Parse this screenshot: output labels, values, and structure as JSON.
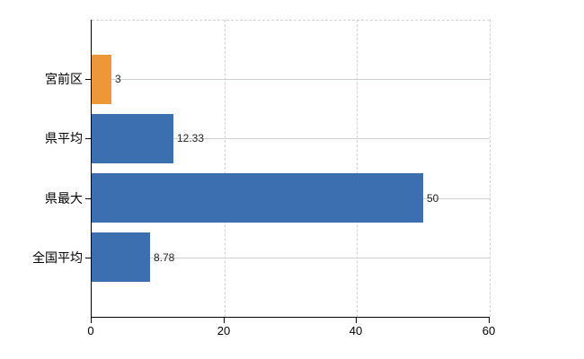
{
  "chart_data": {
    "type": "bar",
    "orientation": "horizontal",
    "title": "",
    "xlabel": "",
    "ylabel": "",
    "categories": [
      "宮前区",
      "県平均",
      "県最大",
      "全国平均"
    ],
    "values": [
      3,
      12.33,
      50,
      8.78
    ],
    "value_labels": [
      "3",
      "12.33",
      "50",
      "8.78"
    ],
    "bar_colors": [
      "#ee9738",
      "#3c6fb0",
      "#3c6fb0",
      "#3c6fb0"
    ],
    "xlim": [
      0,
      60
    ],
    "xticks": [
      0,
      20,
      40,
      60
    ],
    "xtick_labels": [
      "0",
      "20",
      "40",
      "60"
    ],
    "legend": "none",
    "grid": {
      "horizontal": true,
      "vertical": true,
      "top_border_dashed": true,
      "h_color": "#ccd5cc",
      "v_color": "#d4d0d4"
    },
    "colors": {
      "axis": "#000000",
      "category_label": "#000000",
      "tick_label": "#000000",
      "value_label": "#222222",
      "background": "#ffffff"
    }
  }
}
